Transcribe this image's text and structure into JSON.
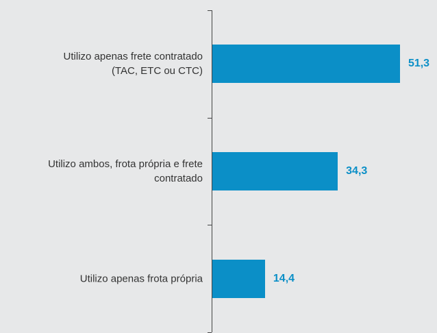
{
  "chart_data": {
    "type": "bar",
    "orientation": "horizontal",
    "categories": [
      "Utilizo apenas frete contratado (TAC, ETC ou CTC)",
      "Utilizo ambos, frota própria e frete contratado",
      "Utilizo apenas frota própria"
    ],
    "values": [
      51.3,
      34.3,
      14.4
    ],
    "value_labels": [
      "51,3",
      "34,3",
      "14,4"
    ],
    "color": "#0b8fc7"
  }
}
